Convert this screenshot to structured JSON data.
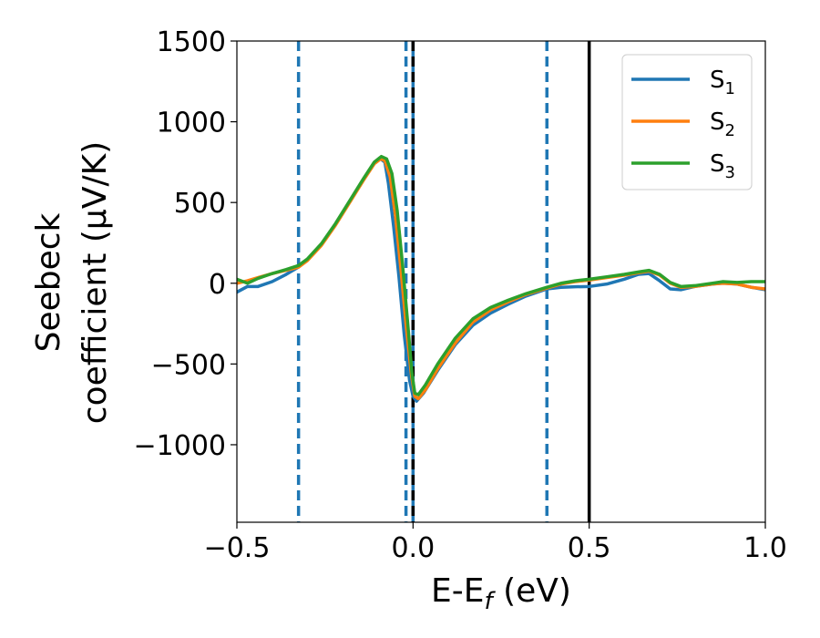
{
  "chart_data": {
    "type": "line",
    "xlabel": {
      "base": "E-E",
      "sub": "f",
      "tail": " (eV)"
    },
    "ylabel_line1": "Seebeck",
    "ylabel_line2": "coefficient  (μV/K)",
    "xlim": [
      -0.5,
      1.0
    ],
    "ylim": [
      -1480,
      1500
    ],
    "xticks": [
      {
        "v": -0.5,
        "label": "−0.5"
      },
      {
        "v": 0.0,
        "label": "0.0"
      },
      {
        "v": 0.5,
        "label": "0.5"
      },
      {
        "v": 1.0,
        "label": "1.0"
      }
    ],
    "yticks": [
      {
        "v": 1500,
        "label": "1500"
      },
      {
        "v": 1000,
        "label": "1000"
      },
      {
        "v": 500,
        "label": "500"
      },
      {
        "v": 0,
        "label": "0"
      },
      {
        "v": -500,
        "label": "−500"
      },
      {
        "v": -1000,
        "label": "−1000"
      }
    ],
    "grid": false,
    "legend_position": "top-right",
    "vlines": [
      {
        "x": -0.325,
        "color": "#1f77b4",
        "style": "dashed"
      },
      {
        "x": -0.02,
        "color": "#1f77b4",
        "style": "dashed"
      },
      {
        "x": 0.0,
        "color": "#1f77b4",
        "style": "solid"
      },
      {
        "x": 0.0,
        "color": "#000000",
        "style": "dashed"
      },
      {
        "x": 0.38,
        "color": "#1f77b4",
        "style": "dashed"
      },
      {
        "x": 0.5,
        "color": "#000000",
        "style": "solid"
      }
    ],
    "series": [
      {
        "name": "S1",
        "label_base": "S",
        "label_sub": "1",
        "color": "#1f77b4",
        "points": [
          [
            -0.5,
            -55
          ],
          [
            -0.47,
            -20
          ],
          [
            -0.44,
            -20
          ],
          [
            -0.4,
            10
          ],
          [
            -0.36,
            55
          ],
          [
            -0.325,
            100
          ],
          [
            -0.3,
            145
          ],
          [
            -0.26,
            240
          ],
          [
            -0.22,
            365
          ],
          [
            -0.18,
            505
          ],
          [
            -0.14,
            645
          ],
          [
            -0.11,
            745
          ],
          [
            -0.095,
            775
          ],
          [
            -0.08,
            750
          ],
          [
            -0.07,
            620
          ],
          [
            -0.055,
            350
          ],
          [
            -0.04,
            40
          ],
          [
            -0.025,
            -320
          ],
          [
            -0.01,
            -600
          ],
          [
            0.0,
            -700
          ],
          [
            0.01,
            -730
          ],
          [
            0.03,
            -680
          ],
          [
            0.07,
            -540
          ],
          [
            0.12,
            -380
          ],
          [
            0.17,
            -260
          ],
          [
            0.22,
            -185
          ],
          [
            0.27,
            -130
          ],
          [
            0.32,
            -80
          ],
          [
            0.38,
            -35
          ],
          [
            0.42,
            -25
          ],
          [
            0.46,
            -22
          ],
          [
            0.5,
            -20
          ],
          [
            0.55,
            -5
          ],
          [
            0.6,
            25
          ],
          [
            0.64,
            55
          ],
          [
            0.67,
            60
          ],
          [
            0.7,
            15
          ],
          [
            0.73,
            -35
          ],
          [
            0.76,
            -40
          ],
          [
            0.8,
            -20
          ],
          [
            0.85,
            -5
          ],
          [
            0.88,
            0
          ],
          [
            0.92,
            -5
          ],
          [
            0.96,
            -25
          ],
          [
            1.0,
            -40
          ]
        ]
      },
      {
        "name": "S2",
        "label_base": "S",
        "label_sub": "2",
        "color": "#ff7f0e",
        "points": [
          [
            -0.5,
            0
          ],
          [
            -0.47,
            15
          ],
          [
            -0.44,
            35
          ],
          [
            -0.4,
            60
          ],
          [
            -0.36,
            80
          ],
          [
            -0.325,
            100
          ],
          [
            -0.3,
            140
          ],
          [
            -0.26,
            235
          ],
          [
            -0.22,
            360
          ],
          [
            -0.18,
            500
          ],
          [
            -0.14,
            640
          ],
          [
            -0.11,
            740
          ],
          [
            -0.092,
            770
          ],
          [
            -0.08,
            760
          ],
          [
            -0.065,
            660
          ],
          [
            -0.05,
            420
          ],
          [
            -0.035,
            100
          ],
          [
            -0.02,
            -250
          ],
          [
            -0.005,
            -560
          ],
          [
            0.005,
            -700
          ],
          [
            0.015,
            -715
          ],
          [
            0.035,
            -660
          ],
          [
            0.07,
            -530
          ],
          [
            0.12,
            -370
          ],
          [
            0.17,
            -240
          ],
          [
            0.22,
            -165
          ],
          [
            0.27,
            -115
          ],
          [
            0.32,
            -70
          ],
          [
            0.38,
            -30
          ],
          [
            0.42,
            -5
          ],
          [
            0.46,
            10
          ],
          [
            0.5,
            20
          ],
          [
            0.55,
            35
          ],
          [
            0.6,
            50
          ],
          [
            0.64,
            65
          ],
          [
            0.67,
            75
          ],
          [
            0.7,
            50
          ],
          [
            0.73,
            0
          ],
          [
            0.76,
            -25
          ],
          [
            0.8,
            -20
          ],
          [
            0.85,
            -5
          ],
          [
            0.88,
            0
          ],
          [
            0.92,
            -5
          ],
          [
            0.96,
            -25
          ],
          [
            1.0,
            -35
          ]
        ]
      },
      {
        "name": "S3",
        "label_base": "S",
        "label_sub": "3",
        "color": "#2ca02c",
        "points": [
          [
            -0.5,
            25
          ],
          [
            -0.47,
            0
          ],
          [
            -0.44,
            30
          ],
          [
            -0.4,
            60
          ],
          [
            -0.36,
            85
          ],
          [
            -0.325,
            110
          ],
          [
            -0.3,
            150
          ],
          [
            -0.26,
            245
          ],
          [
            -0.22,
            370
          ],
          [
            -0.18,
            510
          ],
          [
            -0.14,
            650
          ],
          [
            -0.11,
            750
          ],
          [
            -0.09,
            785
          ],
          [
            -0.075,
            770
          ],
          [
            -0.06,
            680
          ],
          [
            -0.045,
            450
          ],
          [
            -0.03,
            120
          ],
          [
            -0.015,
            -250
          ],
          [
            -0.003,
            -560
          ],
          [
            0.005,
            -680
          ],
          [
            0.015,
            -690
          ],
          [
            0.035,
            -630
          ],
          [
            0.07,
            -500
          ],
          [
            0.12,
            -340
          ],
          [
            0.17,
            -220
          ],
          [
            0.22,
            -150
          ],
          [
            0.27,
            -105
          ],
          [
            0.32,
            -65
          ],
          [
            0.38,
            -25
          ],
          [
            0.42,
            0
          ],
          [
            0.46,
            15
          ],
          [
            0.5,
            25
          ],
          [
            0.55,
            40
          ],
          [
            0.6,
            55
          ],
          [
            0.64,
            70
          ],
          [
            0.67,
            80
          ],
          [
            0.7,
            55
          ],
          [
            0.73,
            5
          ],
          [
            0.76,
            -20
          ],
          [
            0.8,
            -15
          ],
          [
            0.85,
            0
          ],
          [
            0.88,
            10
          ],
          [
            0.92,
            5
          ],
          [
            0.96,
            10
          ],
          [
            1.0,
            10
          ]
        ]
      }
    ]
  }
}
